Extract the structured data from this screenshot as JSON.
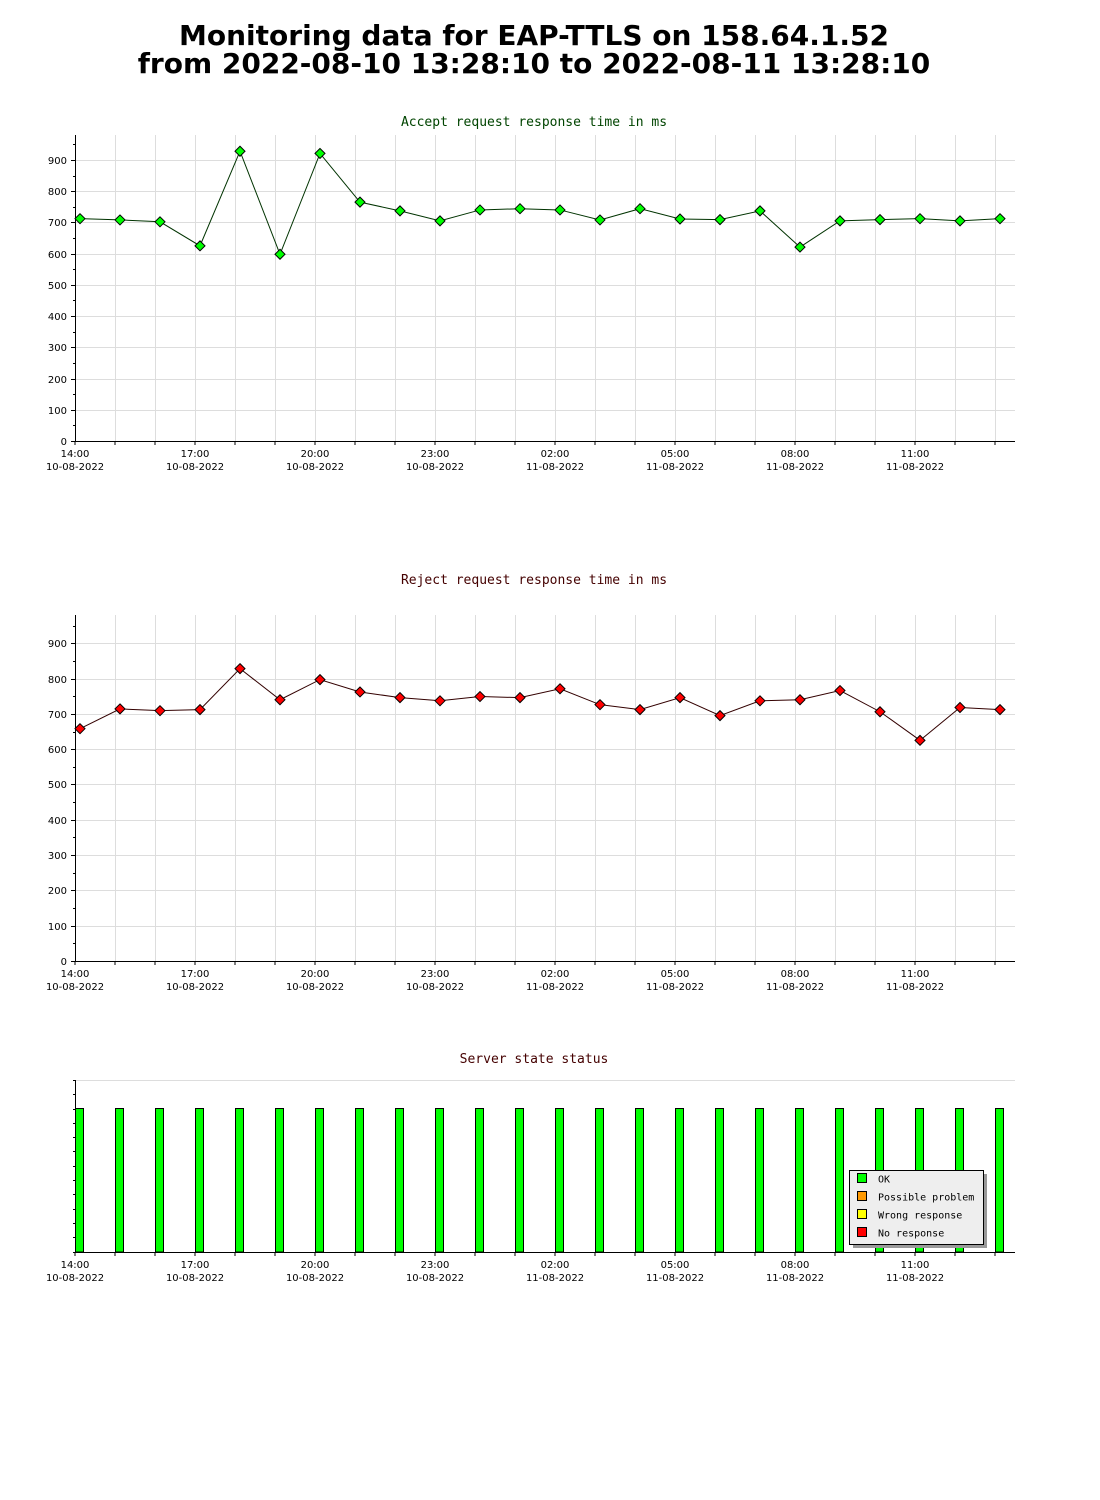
{
  "page": {
    "title_line1": "Monitoring data for EAP-TTLS on 158.64.1.52",
    "title_line2": "from 2022-08-10 13:28:10 to 2022-08-11 13:28:10"
  },
  "colors": {
    "accept_title": "#004400",
    "reject_title": "#440000",
    "status_title": "#440000",
    "accept_line": "#003300",
    "accept_point": "#00ff00",
    "reject_line": "#330000",
    "reject_point": "#ff0000",
    "grid": "#dddddd",
    "ok": "#00ff00",
    "possible_problem": "#ff9900",
    "wrong_response": "#ffff00",
    "no_response": "#ff0000"
  },
  "x_ticks": [
    {
      "time": "14:00",
      "date": "10-08-2022"
    },
    {
      "time": "17:00",
      "date": "10-08-2022"
    },
    {
      "time": "20:00",
      "date": "10-08-2022"
    },
    {
      "time": "23:00",
      "date": "10-08-2022"
    },
    {
      "time": "02:00",
      "date": "11-08-2022"
    },
    {
      "time": "05:00",
      "date": "11-08-2022"
    },
    {
      "time": "08:00",
      "date": "11-08-2022"
    },
    {
      "time": "11:00",
      "date": "11-08-2022"
    }
  ],
  "chart_data": [
    {
      "type": "line",
      "title": "Accept request response time in ms",
      "ylim": [
        0,
        980
      ],
      "y_ticks": [
        0,
        100,
        200,
        300,
        400,
        500,
        600,
        700,
        800,
        900
      ],
      "x": [
        "13:28",
        "14:28",
        "15:28",
        "16:28",
        "17:28",
        "18:28",
        "19:28",
        "20:28",
        "21:28",
        "22:28",
        "23:28",
        "00:28",
        "01:28",
        "02:28",
        "03:28",
        "04:28",
        "05:28",
        "06:28",
        "07:28",
        "08:28",
        "09:28",
        "10:28",
        "11:28",
        "12:28"
      ],
      "series": [
        {
          "values": [
            712,
            708,
            702,
            625,
            928,
            598,
            921,
            765,
            737,
            705,
            740,
            744,
            740,
            708,
            744,
            711,
            709,
            737,
            621,
            705,
            709,
            712,
            705,
            712
          ]
        }
      ],
      "grid": true
    },
    {
      "type": "line",
      "title": "Reject request response time in ms",
      "ylim": [
        0,
        980
      ],
      "y_ticks": [
        0,
        100,
        200,
        300,
        400,
        500,
        600,
        700,
        800,
        900
      ],
      "x": [
        "13:28",
        "14:28",
        "15:28",
        "16:28",
        "17:28",
        "18:28",
        "19:28",
        "20:28",
        "21:28",
        "22:28",
        "23:28",
        "00:28",
        "01:28",
        "02:28",
        "03:28",
        "04:28",
        "05:28",
        "06:28",
        "07:28",
        "08:28",
        "09:28",
        "10:28",
        "11:28",
        "12:28"
      ],
      "series": [
        {
          "values": [
            658,
            714,
            709,
            712,
            828,
            740,
            797,
            762,
            746,
            737,
            749,
            746,
            771,
            726,
            712,
            746,
            695,
            737,
            740,
            766,
            706,
            625,
            718,
            712
          ]
        }
      ],
      "grid": true
    },
    {
      "type": "bar",
      "title": "Server state status",
      "x": [
        "13:28",
        "14:28",
        "15:28",
        "16:28",
        "17:28",
        "18:28",
        "19:28",
        "20:28",
        "21:28",
        "22:28",
        "23:28",
        "00:28",
        "01:28",
        "02:28",
        "03:28",
        "04:28",
        "05:28",
        "06:28",
        "07:28",
        "08:28",
        "09:28",
        "10:28",
        "11:28",
        "12:28"
      ],
      "status": [
        "OK",
        "OK",
        "OK",
        "OK",
        "OK",
        "OK",
        "OK",
        "OK",
        "OK",
        "OK",
        "OK",
        "OK",
        "OK",
        "OK",
        "OK",
        "OK",
        "OK",
        "OK",
        "OK",
        "OK",
        "OK",
        "OK",
        "OK",
        "OK"
      ],
      "legend": {
        "placement": "bottom-right",
        "entries": [
          {
            "label": "OK",
            "color": "#00ff00"
          },
          {
            "label": "Possible problem",
            "color": "#ff9900"
          },
          {
            "label": "Wrong response",
            "color": "#ffff00"
          },
          {
            "label": "No response",
            "color": "#ff0000"
          }
        ]
      }
    }
  ]
}
